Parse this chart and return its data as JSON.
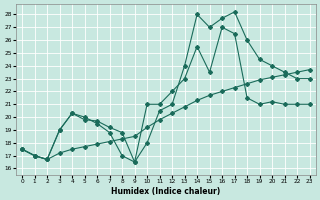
{
  "xlabel": "Humidex (Indice chaleur)",
  "bg_color": "#c8e8e0",
  "grid_color": "#b8d8d0",
  "line_color": "#1a6b5a",
  "xlim": [
    -0.5,
    23.5
  ],
  "ylim": [
    15.5,
    28.8
  ],
  "yticks": [
    16,
    17,
    18,
    19,
    20,
    21,
    22,
    23,
    24,
    25,
    26,
    27,
    28
  ],
  "xticks": [
    0,
    1,
    2,
    3,
    4,
    5,
    6,
    7,
    8,
    9,
    10,
    11,
    12,
    13,
    14,
    15,
    16,
    17,
    18,
    19,
    20,
    21,
    22,
    23
  ],
  "line1_x": [
    0,
    1,
    2,
    3,
    4,
    5,
    6,
    7,
    8,
    9,
    10,
    11,
    12,
    13,
    14,
    15,
    16,
    17,
    18,
    19,
    20,
    21,
    22,
    23
  ],
  "line1_y": [
    17.5,
    17.0,
    16.7,
    19.0,
    20.3,
    20.0,
    19.5,
    18.8,
    17.0,
    16.5,
    18.0,
    20.5,
    21.0,
    24.0,
    28.0,
    27.0,
    27.7,
    28.2,
    26.0,
    24.5,
    24.0,
    23.5,
    23.0,
    23.0
  ],
  "line2_x": [
    0,
    1,
    2,
    3,
    4,
    5,
    6,
    7,
    8,
    9,
    10,
    11,
    12,
    13,
    14,
    15,
    16,
    17,
    18,
    19,
    20,
    21,
    22,
    23
  ],
  "line2_y": [
    17.5,
    17.0,
    16.7,
    17.2,
    17.5,
    17.7,
    17.9,
    18.1,
    18.3,
    18.5,
    19.2,
    19.8,
    20.3,
    20.8,
    21.3,
    21.7,
    22.0,
    22.3,
    22.6,
    22.9,
    23.1,
    23.3,
    23.5,
    23.7
  ],
  "line3_x": [
    0,
    1,
    2,
    3,
    4,
    5,
    6,
    7,
    8,
    9,
    10,
    11,
    12,
    13,
    14,
    15,
    16,
    17,
    18,
    19,
    20,
    21,
    22,
    23
  ],
  "line3_y": [
    17.5,
    17.0,
    16.7,
    19.0,
    20.3,
    19.8,
    19.7,
    19.2,
    18.8,
    16.5,
    21.0,
    21.0,
    22.0,
    23.0,
    25.5,
    23.5,
    27.0,
    26.5,
    21.5,
    21.0,
    21.2,
    21.0,
    21.0,
    21.0
  ]
}
